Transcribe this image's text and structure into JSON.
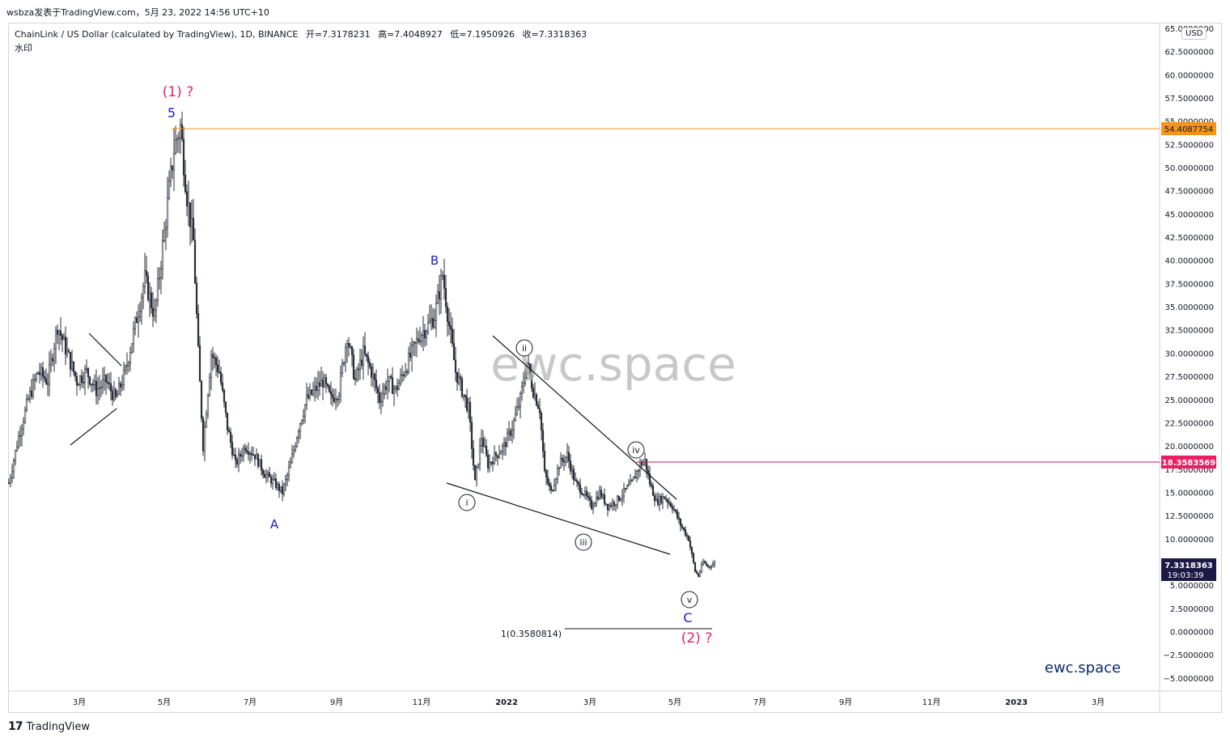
{
  "header": {
    "publish_line": "wsbza发表于TradingView.com，5月 23, 2022 14:56 UTC+10",
    "symbol_description": "ChainLink / US Dollar (calculated by TradingView), 1D, BINANCE",
    "ohlc": {
      "open": "开=7.3178231",
      "high": "高=7.4048927",
      "low": "低=7.1950926",
      "close": "收=7.3318363"
    },
    "watermark_label": "水印",
    "currency": "USD"
  },
  "chart_data": {
    "type": "candlestick",
    "y_axis": {
      "range": [
        -6.5,
        66
      ],
      "ticks": [
        "65.0000000",
        "62.5000000",
        "60.0000000",
        "57.5000000",
        "55.0000000",
        "52.5000000",
        "50.0000000",
        "47.5000000",
        "45.0000000",
        "42.5000000",
        "40.0000000",
        "37.5000000",
        "35.0000000",
        "32.5000000",
        "30.0000000",
        "27.5000000",
        "25.0000000",
        "22.5000000",
        "20.0000000",
        "17.5000000",
        "15.0000000",
        "12.5000000",
        "10.0000000",
        "7.5000000",
        "5.0000000",
        "2.5000000",
        "0.0000000",
        "−2.5000000",
        "−5.0000000"
      ]
    },
    "x_axis": {
      "ticks": [
        "3月",
        "5月",
        "7月",
        "9月",
        "11月",
        "2022",
        "3月",
        "5月",
        "7月",
        "9月",
        "11月",
        "2023",
        "3月"
      ]
    },
    "price_path": [
      [
        0,
        16
      ],
      [
        12,
        21
      ],
      [
        24,
        25
      ],
      [
        36,
        28
      ],
      [
        48,
        27
      ],
      [
        60,
        33
      ],
      [
        72,
        30
      ],
      [
        84,
        27
      ],
      [
        96,
        28
      ],
      [
        108,
        26
      ],
      [
        120,
        27
      ],
      [
        132,
        25
      ],
      [
        144,
        28
      ],
      [
        156,
        33
      ],
      [
        168,
        38
      ],
      [
        180,
        34
      ],
      [
        192,
        43
      ],
      [
        204,
        52
      ],
      [
        212,
        54.4
      ],
      [
        220,
        47
      ],
      [
        228,
        42
      ],
      [
        234,
        30
      ],
      [
        240,
        20
      ],
      [
        250,
        30
      ],
      [
        260,
        28
      ],
      [
        270,
        22
      ],
      [
        280,
        18
      ],
      [
        292,
        20
      ],
      [
        304,
        19
      ],
      [
        316,
        17
      ],
      [
        328,
        16
      ],
      [
        338,
        15
      ],
      [
        348,
        18
      ],
      [
        358,
        22
      ],
      [
        368,
        25
      ],
      [
        378,
        26
      ],
      [
        388,
        27
      ],
      [
        398,
        25
      ],
      [
        408,
        26
      ],
      [
        418,
        32
      ],
      [
        428,
        27
      ],
      [
        438,
        30
      ],
      [
        448,
        28
      ],
      [
        458,
        25
      ],
      [
        468,
        27
      ],
      [
        478,
        26
      ],
      [
        488,
        28
      ],
      [
        498,
        30
      ],
      [
        508,
        32
      ],
      [
        518,
        33
      ],
      [
        526,
        34
      ],
      [
        536,
        38.5
      ],
      [
        544,
        33
      ],
      [
        552,
        28
      ],
      [
        560,
        26
      ],
      [
        568,
        24
      ],
      [
        576,
        16
      ],
      [
        584,
        21
      ],
      [
        592,
        18
      ],
      [
        602,
        19
      ],
      [
        612,
        20
      ],
      [
        622,
        22
      ],
      [
        632,
        25
      ],
      [
        640,
        29
      ],
      [
        648,
        26
      ],
      [
        656,
        24
      ],
      [
        662,
        17
      ],
      [
        670,
        15
      ],
      [
        680,
        18
      ],
      [
        690,
        19
      ],
      [
        700,
        16
      ],
      [
        710,
        15
      ],
      [
        720,
        13.5
      ],
      [
        730,
        15
      ],
      [
        740,
        13.5
      ],
      [
        750,
        14
      ],
      [
        760,
        15
      ],
      [
        770,
        16
      ],
      [
        780,
        18
      ],
      [
        786,
        18.4
      ],
      [
        792,
        16
      ],
      [
        800,
        14
      ],
      [
        810,
        14.5
      ],
      [
        820,
        13.5
      ],
      [
        830,
        11.5
      ],
      [
        840,
        10
      ],
      [
        848,
        6.5
      ],
      [
        852,
        6
      ],
      [
        858,
        7.5
      ],
      [
        864,
        7
      ],
      [
        872,
        7.33
      ]
    ],
    "horizontal_levels": [
      {
        "value": 54.4087754,
        "label": "54.4087754",
        "color": "#f7931a"
      },
      {
        "value": 18.3583569,
        "label": "18.3583569",
        "color": "#c2185b"
      }
    ],
    "last_price": {
      "value": 7.3318363,
      "label": "7.3318363",
      "countdown": "19:03:39"
    },
    "fib_level": {
      "value": 0.3580814,
      "label": "1(0.3580814)"
    },
    "wave_labels": {
      "primary_1": "(1) ?",
      "primary_2": "(2) ?",
      "w5": "5",
      "wA": "A",
      "wB": "B",
      "wC": "C",
      "sub_i": "i",
      "sub_ii": "ii",
      "sub_iii": "iii",
      "sub_iv": "iv",
      "sub_v": "v"
    },
    "watermark_center": "ewc.space",
    "brand_corner": "ewc.space"
  },
  "colors": {
    "candle": "#2a2e39",
    "wave_primary": "#e91e63",
    "wave_letters": "#1a1ad6",
    "level_orange": "#f7931a",
    "level_magenta": "#c2185b",
    "last_price_bg": "#1c1a45"
  },
  "footer": {
    "brand": "TradingView",
    "logo": "17"
  }
}
